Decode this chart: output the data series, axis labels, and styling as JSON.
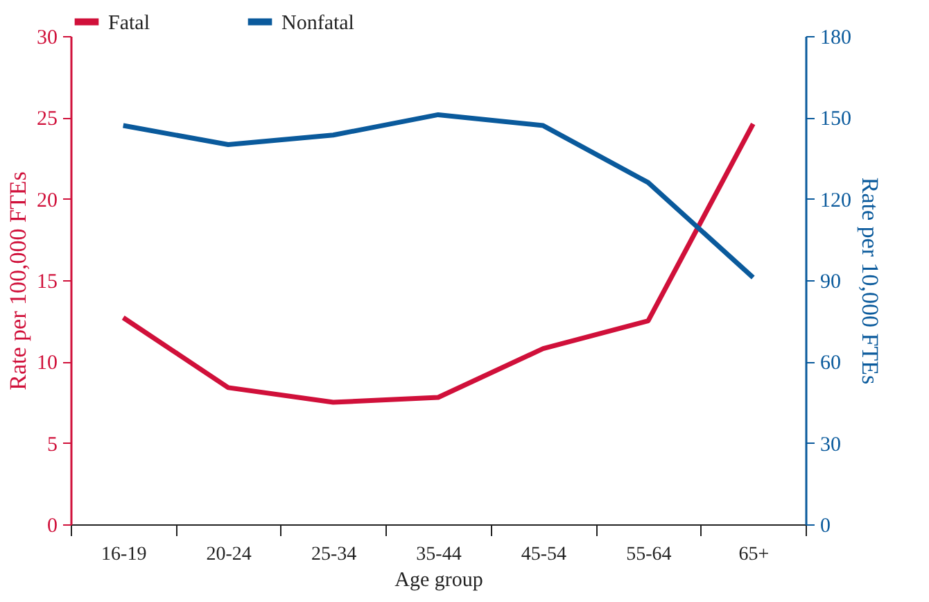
{
  "chart_data": {
    "type": "line",
    "xlabel": "Age group",
    "ylabel": "Rate per 100,000 FTEs",
    "y2label": "Rate per 10,000 FTEs",
    "categories": [
      "16-19",
      "20-24",
      "25-34",
      "35-44",
      "45-54",
      "55-64",
      "65+"
    ],
    "series": [
      {
        "name": "Fatal",
        "color": "#d0103a",
        "values": [
          12.7,
          8.4,
          7.5,
          7.8,
          10.8,
          12.5,
          24.6
        ]
      },
      {
        "name": "Nonfatal",
        "color": "#0a5a9c",
        "axis": "y2",
        "values": [
          147,
          140,
          143.5,
          151,
          147,
          126,
          91
        ]
      }
    ],
    "ylim": [
      0,
      30
    ],
    "yticks": [
      0,
      5,
      10,
      15,
      20,
      25,
      30
    ],
    "y2lim": [
      0,
      180
    ],
    "y2ticks": [
      0,
      30,
      60,
      90,
      120,
      150,
      180
    ],
    "legend": "top",
    "grid": false,
    "marker": "none",
    "line_style": "solid"
  }
}
